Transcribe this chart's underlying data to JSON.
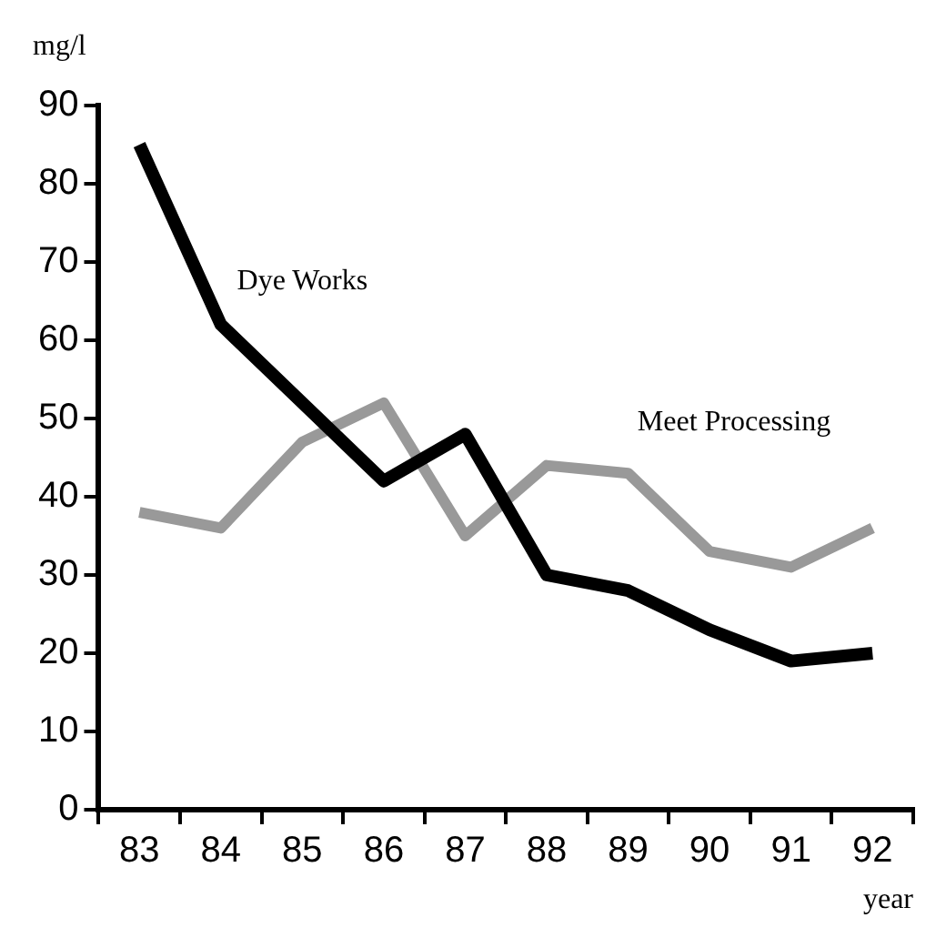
{
  "chart_data": {
    "type": "line",
    "ylabel": "mg/l",
    "xlabel": "year",
    "categories": [
      "83",
      "84",
      "85",
      "86",
      "87",
      "88",
      "89",
      "90",
      "91",
      "92"
    ],
    "series": [
      {
        "name": "Dye Works",
        "color": "#000000",
        "values": [
          85,
          62,
          52,
          42,
          48,
          30,
          28,
          23,
          19,
          20
        ]
      },
      {
        "name": "Meet Processing",
        "color": "#999999",
        "values": [
          38,
          36,
          47,
          52,
          35,
          44,
          43,
          33,
          31,
          36
        ]
      }
    ],
    "ylim": [
      0,
      90
    ],
    "yticks": [
      0,
      10,
      20,
      30,
      40,
      50,
      60,
      70,
      80,
      90
    ],
    "grid": false,
    "legend": false,
    "marker": "none",
    "line_style": "solid"
  }
}
